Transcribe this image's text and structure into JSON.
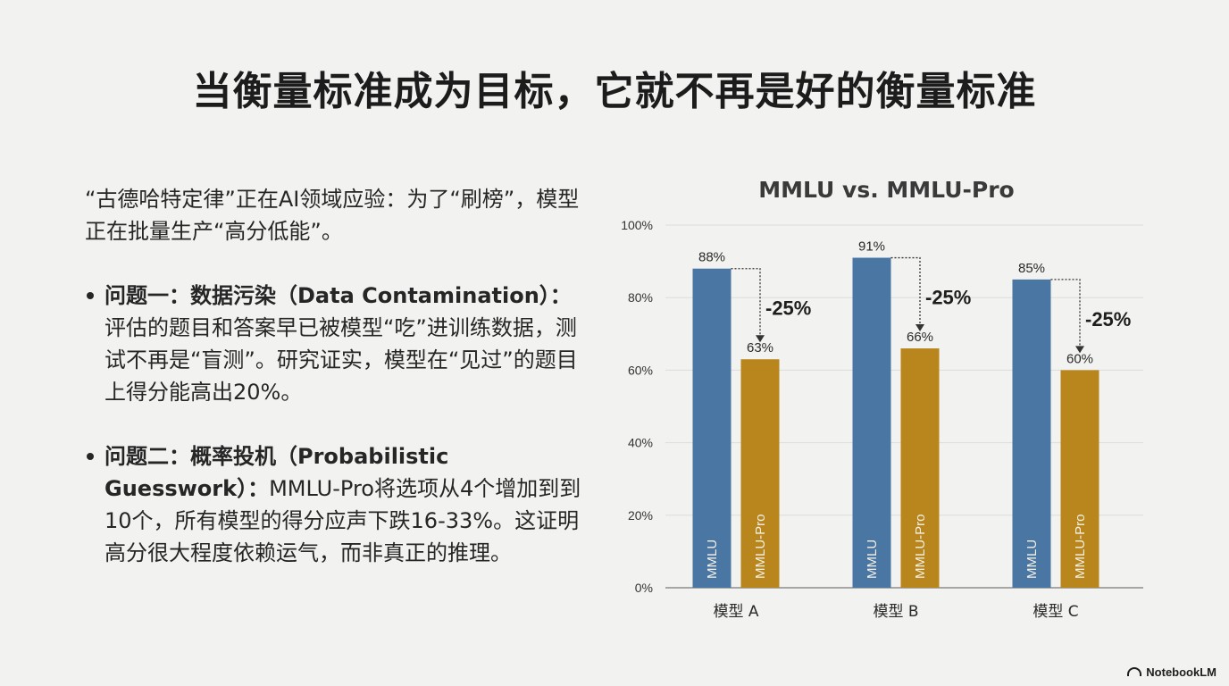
{
  "page": {
    "title": "当衡量标准成为目标，它就不再是好的衡量标准",
    "intro": "“古德哈特定律”正在AI领域应验：为了“刷榜”，模型正在批量生产“高分低能”。",
    "bullets": [
      {
        "heading": "问题一：数据污染（Data Contamination）：",
        "text": "评估的题目和答案早已被模型“吃”进训练数据，测试不再是“盲测”。研究证实，模型在“见过”的题目上得分能高出20%。"
      },
      {
        "heading": "问题二：概率投机（Probabilistic Guesswork）：",
        "text": "MMLU-Pro将选项从4个增加到到10个，所有模型的得分应声下跌16-33%。这证明高分很大程度依赖运气，而非真正的推理。"
      }
    ],
    "brand": "NotebookLM"
  },
  "chart_data": {
    "type": "bar",
    "title": "MMLU vs. MMLU-Pro",
    "categories": [
      "模型 A",
      "模型 B",
      "模型 C"
    ],
    "series": [
      {
        "name": "MMLU",
        "values": [
          88,
          91,
          85
        ],
        "color": "#4a76a4",
        "labels": [
          "88%",
          "91%",
          "85%"
        ]
      },
      {
        "name": "MMLU-Pro",
        "values": [
          63,
          66,
          60
        ],
        "color": "#b8861c",
        "labels": [
          "63%",
          "66%",
          "60%"
        ]
      }
    ],
    "annotations": [
      "-25%",
      "-25%",
      "-25%"
    ],
    "ylim": [
      0,
      100
    ],
    "yticks": [
      "0%",
      "20%",
      "40%",
      "60%",
      "80%",
      "100%"
    ],
    "ytick_values": [
      0,
      20,
      40,
      60,
      80,
      100
    ],
    "grid": true,
    "xlabel": "",
    "ylabel": ""
  }
}
